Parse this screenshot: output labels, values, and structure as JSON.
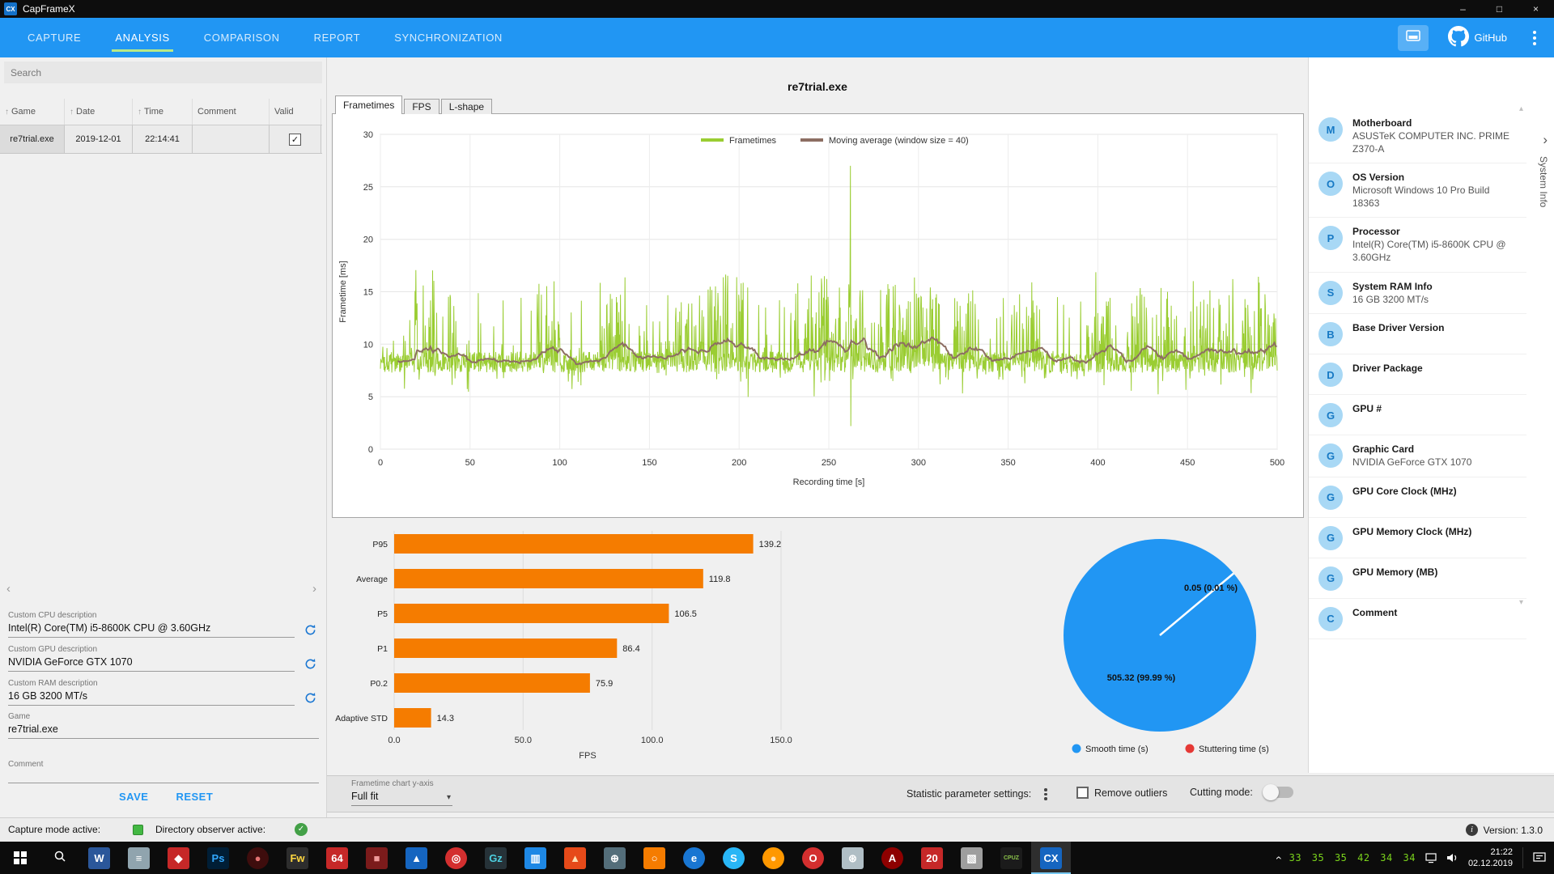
{
  "colors": {
    "nav": "#2196F3",
    "nav_active_underline": "#b8e986",
    "tray_green": "#7bd41c",
    "status_green": "#43b843"
  },
  "titlebar": {
    "app_title": "CapFrameX",
    "logo_text": "CX",
    "controls": {
      "minimize": "–",
      "maximize": "□",
      "close": "×"
    }
  },
  "navbar": {
    "tabs": [
      {
        "label": "CAPTURE",
        "active": false
      },
      {
        "label": "ANALYSIS",
        "active": true
      },
      {
        "label": "COMPARISON",
        "active": false
      },
      {
        "label": "REPORT",
        "active": false
      },
      {
        "label": "SYNCHRONIZATION",
        "active": false
      }
    ],
    "github_label": "GitHub"
  },
  "record_list": {
    "search_placeholder": "Search",
    "columns": [
      {
        "label": "Game",
        "sortable": true
      },
      {
        "label": "Date",
        "sortable": true
      },
      {
        "label": "Time",
        "sortable": true
      },
      {
        "label": "Comment",
        "sortable": false
      },
      {
        "label": "Valid",
        "sortable": false
      }
    ],
    "rows": [
      {
        "game": "re7trial.exe",
        "date": "2019-12-01",
        "time": "22:14:41",
        "comment": "",
        "valid": true
      }
    ]
  },
  "description_form": {
    "fields": [
      {
        "label": "Custom CPU description",
        "value": "Intel(R) Core(TM) i5-8600K CPU @ 3.60GHz",
        "has_refresh": true
      },
      {
        "label": "Custom GPU description",
        "value": "NVIDIA GeForce GTX 1070",
        "has_refresh": true
      },
      {
        "label": "Custom RAM description",
        "value": "16 GB 3200 MT/s",
        "has_refresh": true
      },
      {
        "label": "Game",
        "value": "re7trial.exe",
        "has_refresh": false
      },
      {
        "label": "Comment",
        "value": "",
        "has_refresh": false
      }
    ],
    "save_label": "SAVE",
    "reset_label": "RESET"
  },
  "analysis": {
    "title": "re7trial.exe",
    "tabs": [
      {
        "label": "Frametimes",
        "active": true
      },
      {
        "label": "FPS",
        "active": false
      },
      {
        "label": "L-shape",
        "active": false
      }
    ]
  },
  "chart_data": [
    {
      "type": "line",
      "title": "Frametimes",
      "xlabel": "Recording time [s]",
      "ylabel": "Frametime [ms]",
      "xlim": [
        0,
        500
      ],
      "ylim": [
        0,
        30
      ],
      "xticks": [
        0,
        50,
        100,
        150,
        200,
        250,
        300,
        350,
        400,
        450,
        500
      ],
      "yticks": [
        0,
        5,
        10,
        15,
        20,
        25,
        30
      ],
      "grid": true,
      "legend_position": "top",
      "legend": [
        {
          "label": "Frametimes",
          "color": "#9acd32"
        },
        {
          "label": "Moving average (window size = 40)",
          "color": "#8d6e63"
        }
      ],
      "series_profile": {
        "comment": "dense noisy frametime trace ~8.3 ms with frequent spikes to 12-16 ms, one large stutter spike at ~262 s (27 ms peak, 2 ms dip)",
        "baseline_ms": 8.3,
        "noise_amp_ms": 1.0,
        "spike_probability": 0.1,
        "spike_max_ms": 6,
        "burst_regions": [
          [
            18,
            30
          ],
          [
            85,
            100
          ],
          [
            122,
            137
          ],
          [
            158,
            205
          ],
          [
            228,
            272
          ],
          [
            278,
            312
          ],
          [
            318,
            332
          ],
          [
            352,
            368
          ],
          [
            392,
            408
          ],
          [
            418,
            442
          ],
          [
            452,
            500
          ]
        ],
        "burst_probability": 0.38,
        "burst_max_ms": 8,
        "anomaly": {
          "x": 262,
          "peak_ms": 27,
          "dip_ms": 2.2
        },
        "moving_average_window": 40,
        "points": 2200
      }
    },
    {
      "type": "bar",
      "orientation": "horizontal",
      "categories": [
        "P95",
        "Average",
        "P5",
        "P1",
        "P0.2",
        "Adaptive STD"
      ],
      "values": [
        139.2,
        119.8,
        106.5,
        86.4,
        75.9,
        14.3
      ],
      "xlabel": "FPS",
      "xlim": [
        0,
        150
      ],
      "xticks": [
        0,
        50,
        100,
        150
      ],
      "bar_color": "#f57c00"
    },
    {
      "type": "pie",
      "slices": [
        {
          "label": "Smooth time (s)",
          "value": 505.32,
          "display": "505.32 (99.99 %)",
          "color": "#2196F3"
        },
        {
          "label": "Stuttering time (s)",
          "value": 0.05,
          "display": "0.05 (0.01 %)",
          "color": "#e53935"
        }
      ],
      "legend_position": "bottom"
    }
  ],
  "options_bar": {
    "yaxis_label": "Frametime chart y-axis",
    "yaxis_value": "Full fit",
    "statistics_label": "Statistic parameter settings:",
    "remove_outliers_label": "Remove outliers",
    "remove_outliers_checked": false,
    "cutting_mode_label": "Cutting mode:",
    "cutting_mode_on": false
  },
  "system_info": {
    "panel_label": "System Info",
    "items": [
      {
        "letter": "M",
        "title": "Motherboard",
        "value": "ASUSTeK COMPUTER INC. PRIME Z370-A"
      },
      {
        "letter": "O",
        "title": "OS Version",
        "value": "Microsoft Windows 10 Pro Build 18363"
      },
      {
        "letter": "P",
        "title": "Processor",
        "value": "Intel(R) Core(TM) i5-8600K CPU @ 3.60GHz"
      },
      {
        "letter": "S",
        "title": "System RAM Info",
        "value": "16 GB 3200 MT/s"
      },
      {
        "letter": "B",
        "title": "Base Driver Version",
        "value": ""
      },
      {
        "letter": "D",
        "title": "Driver Package",
        "value": ""
      },
      {
        "letter": "G",
        "title": "GPU #",
        "value": ""
      },
      {
        "letter": "G",
        "title": "Graphic Card",
        "value": "NVIDIA GeForce GTX 1070"
      },
      {
        "letter": "G",
        "title": "GPU Core Clock (MHz)",
        "value": ""
      },
      {
        "letter": "G",
        "title": "GPU Memory Clock (MHz)",
        "value": ""
      },
      {
        "letter": "G",
        "title": "GPU Memory (MB)",
        "value": ""
      },
      {
        "letter": "C",
        "title": "Comment",
        "value": ""
      }
    ]
  },
  "status_bar": {
    "capture_mode_label": "Capture mode active:",
    "observer_label": "Directory observer active:",
    "version_label": "Version: 1.3.0"
  },
  "taskbar": {
    "apps": [
      {
        "glyph": "W",
        "bg": "#2b579a",
        "fg": "#ffffff",
        "shape": "square",
        "name": "word"
      },
      {
        "glyph": "≡",
        "bg": "#90a4ae",
        "fg": "#ffffff",
        "shape": "square",
        "name": "gray-doc-app"
      },
      {
        "glyph": "◆",
        "bg": "#c62828",
        "fg": "#ffffff",
        "shape": "square",
        "name": "red-app"
      },
      {
        "glyph": "Ps",
        "bg": "#001e36",
        "fg": "#31a8ff",
        "shape": "square",
        "name": "photoshop"
      },
      {
        "glyph": "●",
        "bg": "#3e0d0d",
        "fg": "#e57373",
        "shape": "circle",
        "name": "dark-red-browser"
      },
      {
        "glyph": "Fw",
        "bg": "#2d2d2d",
        "fg": "#ffd740",
        "shape": "square",
        "name": "fireworks"
      },
      {
        "glyph": "64",
        "bg": "#c62828",
        "fg": "#ffffff",
        "shape": "square",
        "name": "app-64"
      },
      {
        "glyph": "■",
        "bg": "#7b1b1b",
        "fg": "#ef9a9a",
        "shape": "square",
        "name": "maroon-app"
      },
      {
        "glyph": "▲",
        "bg": "#1565c0",
        "fg": "#ffffff",
        "shape": "square",
        "name": "blue-app"
      },
      {
        "glyph": "◎",
        "bg": "#d32f2f",
        "fg": "#ffffff",
        "shape": "circle",
        "name": "red-swirl-app"
      },
      {
        "glyph": "Gz",
        "bg": "#263238",
        "fg": "#4dd0e1",
        "shape": "square",
        "name": "gpu-tool"
      },
      {
        "glyph": "▥",
        "bg": "#1e88e5",
        "fg": "#ffffff",
        "shape": "square",
        "name": "chart-app"
      },
      {
        "glyph": "▲",
        "bg": "#e64a19",
        "fg": "#ffe0b2",
        "shape": "square",
        "name": "flame-app"
      },
      {
        "glyph": "⊕",
        "bg": "#546e7a",
        "fg": "#ffffff",
        "shape": "square",
        "name": "gear-app"
      },
      {
        "glyph": "○",
        "bg": "#f57c00",
        "fg": "#ffffff",
        "shape": "square",
        "name": "orange-app"
      },
      {
        "glyph": "e",
        "bg": "#1976d2",
        "fg": "#ffffff",
        "shape": "circle",
        "name": "edge"
      },
      {
        "glyph": "S",
        "bg": "#29b6f6",
        "fg": "#ffffff",
        "shape": "circle",
        "name": "skype"
      },
      {
        "glyph": "●",
        "bg": "#ff9800",
        "fg": "#ffe0b2",
        "shape": "circle",
        "name": "firefox"
      },
      {
        "glyph": "O",
        "bg": "#d32f2f",
        "fg": "#ffffff",
        "shape": "circle",
        "name": "opera"
      },
      {
        "glyph": "⊛",
        "bg": "#b0bec5",
        "fg": "#ffffff",
        "shape": "square",
        "name": "snowflake-app"
      },
      {
        "glyph": "A",
        "bg": "#8e0000",
        "fg": "#ffffff",
        "shape": "circle",
        "name": "red-a-app"
      },
      {
        "glyph": "20",
        "bg": "#c62828",
        "fg": "#ffffff",
        "shape": "square",
        "name": "app-20"
      },
      {
        "glyph": "▧",
        "bg": "#9e9e9e",
        "fg": "#ffffff",
        "shape": "square",
        "name": "gray-app-2"
      },
      {
        "glyph": "CPUZ",
        "bg": "#1b1b1b",
        "fg": "#8bc34a",
        "shape": "square",
        "name": "cpu-z",
        "small_text": true
      },
      {
        "glyph": "CX",
        "bg": "#1565c0",
        "fg": "#ffffff",
        "shape": "square",
        "name": "capframex",
        "active": true
      }
    ],
    "tray": {
      "numbers": "33 35 35 42 34 34",
      "time": "21:22",
      "date": "02.12.2019"
    }
  }
}
